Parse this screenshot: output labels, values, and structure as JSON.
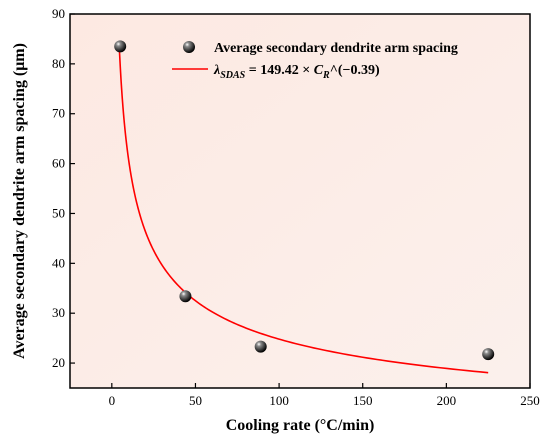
{
  "chart_data": {
    "type": "scatter",
    "xlabel": "Cooling rate (°C/min)",
    "ylabel": "Average secondary dendrite arm spacing (μm)",
    "xlim": [
      -25,
      250
    ],
    "ylim": [
      15,
      90
    ],
    "xticks": [
      0,
      50,
      100,
      150,
      200,
      250
    ],
    "yticks": [
      20,
      30,
      40,
      50,
      60,
      70,
      80,
      90
    ],
    "grid": false,
    "legend_position": "top-right",
    "series": [
      {
        "name": "Average secondary dendrite arm spacing",
        "kind": "scatter",
        "color": "#000000",
        "x": [
          5,
          44,
          89,
          225
        ],
        "y": [
          83.5,
          33.4,
          23.3,
          21.8
        ]
      },
      {
        "name": "λ_SDAS = 149.42 × C_R^(−0.39)",
        "kind": "fit-line",
        "color": "#ff0000",
        "coefficient": 149.42,
        "exponent": -0.39,
        "x_range": [
          4.6,
          225
        ]
      }
    ],
    "legend": {
      "scatter_label": "Average secondary dendrite arm spacing",
      "fit_lambda": "λ",
      "fit_lambda_sub": "SDAS",
      "fit_mid": " = 149.42 × ",
      "fit_c": "C",
      "fit_c_sub": "R",
      "fit_tail": "^(−0.39)"
    }
  }
}
